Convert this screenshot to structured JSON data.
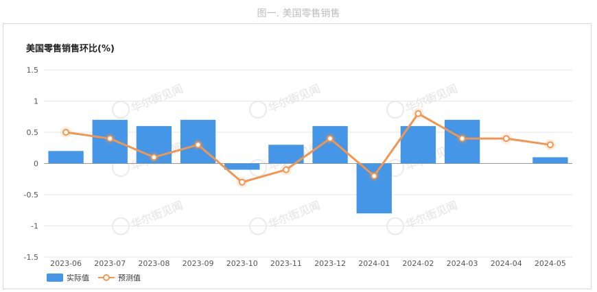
{
  "figure_caption": "图一. 美国零售销售",
  "chart_data": {
    "type": "bar",
    "title": "美国零售销售环比(%)",
    "categories": [
      "2023-06",
      "2023-07",
      "2023-08",
      "2023-09",
      "2023-10",
      "2023-11",
      "2023-12",
      "2024-01",
      "2024-02",
      "2024-03",
      "2024-04",
      "2024-05"
    ],
    "series": [
      {
        "name": "实际值",
        "type": "bar",
        "color": "#4596e6",
        "values": [
          0.2,
          0.7,
          0.6,
          0.7,
          -0.1,
          0.3,
          0.6,
          -0.8,
          0.6,
          0.7,
          null,
          0.1
        ]
      },
      {
        "name": "预测值",
        "type": "line",
        "color": "#f29550",
        "values": [
          0.5,
          0.4,
          0.1,
          0.3,
          -0.3,
          -0.1,
          0.4,
          -0.2,
          0.8,
          0.4,
          0.4,
          0.3
        ]
      }
    ],
    "ylim": [
      -1.5,
      1.5
    ],
    "yticks": [
      "1.5",
      "1",
      "0.5",
      "0",
      "-0.5",
      "-1",
      "-1.5"
    ],
    "grid": true,
    "legend": "bottom-left"
  },
  "watermark": "华尔街见闻"
}
